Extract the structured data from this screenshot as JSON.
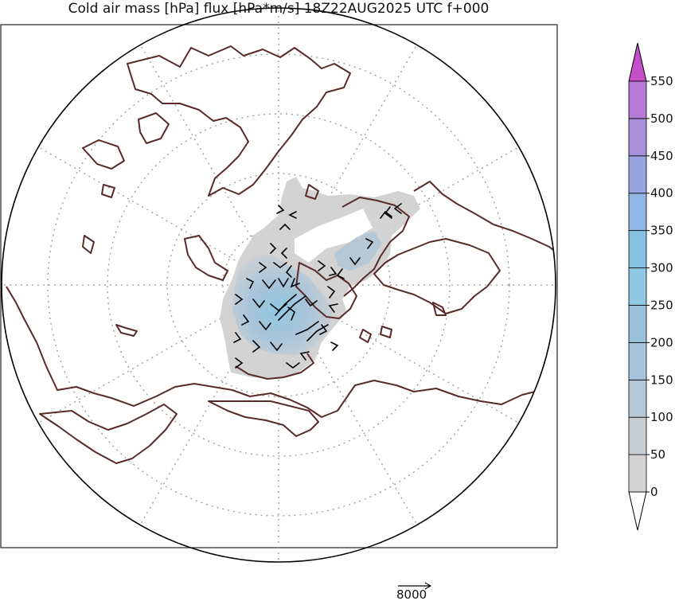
{
  "title": "Cold air mass [hPa] flux [hPa*m/s] 18Z22AUG2025 UTC f+000",
  "colorbar": {
    "ticks": [
      "0",
      "50",
      "100",
      "150",
      "200",
      "250",
      "300",
      "350",
      "400",
      "450",
      "500",
      "550"
    ],
    "colors": [
      "#d3d3d3",
      "#c6cdd3",
      "#b6c8d6",
      "#a7c4da",
      "#9bc2dd",
      "#8ec8e2",
      "#86c2e4",
      "#8fb6e4",
      "#9aa4e0",
      "#a990db",
      "#b77bd5",
      "#c265cd"
    ],
    "extend_top_color": "#c44fc9",
    "extend_bottom_color": "#ffffff"
  },
  "reference_vector": {
    "label": "8000"
  },
  "colors": {
    "coastline": "#5a2a2a",
    "grid": "#999999",
    "vectors": "#000000"
  }
}
